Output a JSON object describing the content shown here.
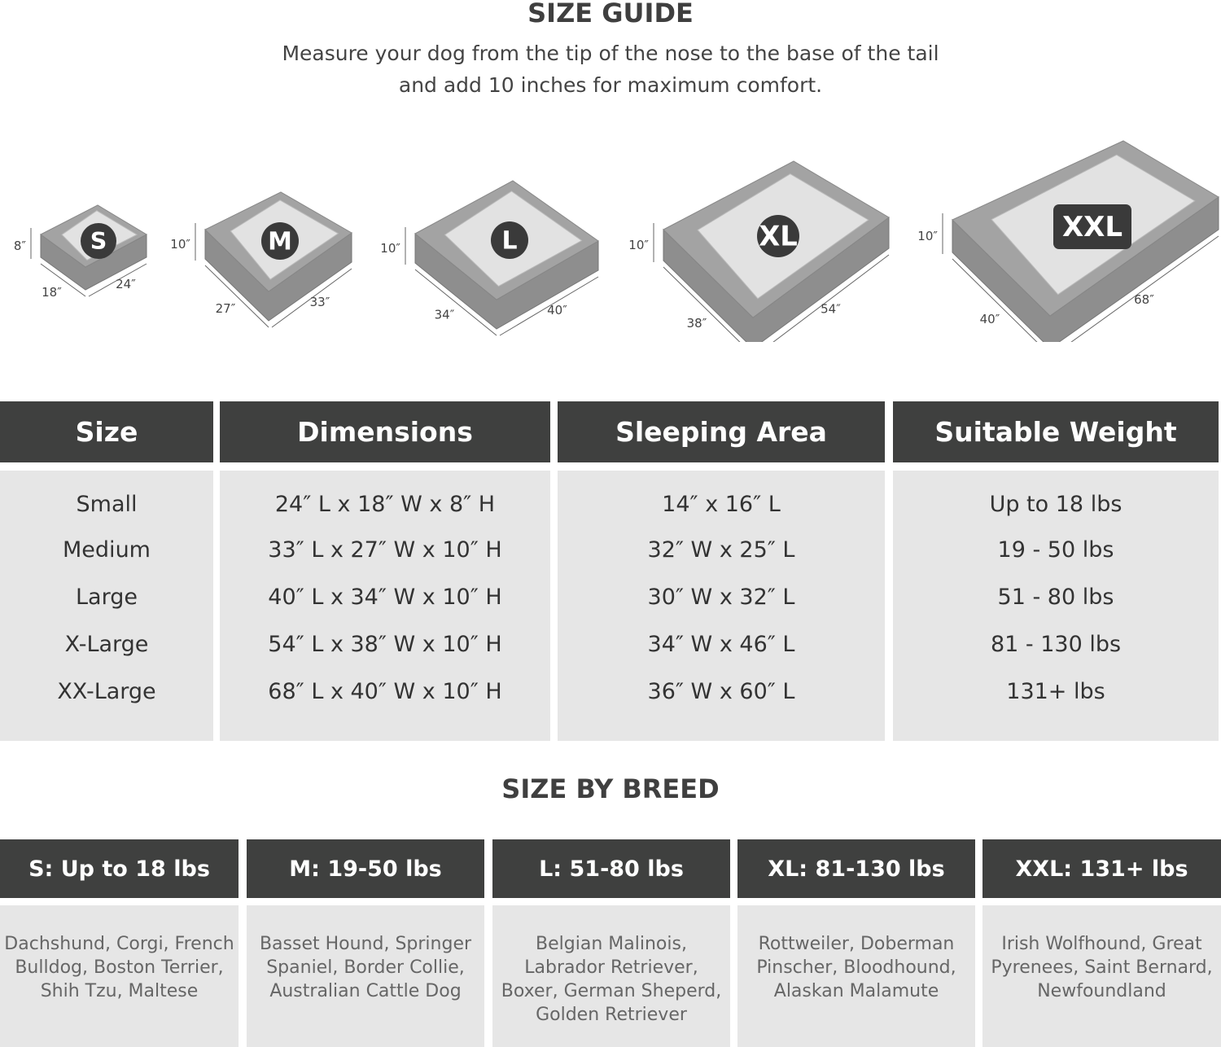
{
  "title": "SIZE GUIDE",
  "subtitle": [
    "Measure your dog from the tip of the nose to the base of the tail",
    "and add 10 inches for maximum comfort."
  ],
  "beds": [
    {
      "badge": "S",
      "height": "8″",
      "width": "18″",
      "length": "24″"
    },
    {
      "badge": "M",
      "height": "10″",
      "width": "27″",
      "length": "33″"
    },
    {
      "badge": "L",
      "height": "10″",
      "width": "34″",
      "length": "40″"
    },
    {
      "badge": "XL",
      "height": "10″",
      "width": "38″",
      "length": "54″"
    },
    {
      "badge": "XXL",
      "height": "10″",
      "width": "40″",
      "length": "68″"
    }
  ],
  "table": {
    "headers": [
      "Size",
      "Dimensions",
      "Sleeping Area",
      "Suitable Weight"
    ],
    "columns": [
      [
        "Small",
        "Medium",
        "Large",
        "X-Large",
        "XX-Large"
      ],
      [
        "24″ L x 18″ W x 8″ H",
        "33″ L x 27″ W x 10″ H",
        "40″ L x 34″ W x 10″ H",
        "54″ L x 38″ W x 10″ H",
        "68″ L x 40″ W x 10″ H"
      ],
      [
        "14″ x 16″ L",
        "32″ W x 25″ L",
        "30″ W x 32″ L",
        "34″ W x 46″ L",
        "36″ W x 60″ L"
      ],
      [
        "Up to 18 lbs",
        "19 - 50 lbs",
        "51 - 80 lbs",
        "81 - 130 lbs",
        "131+ lbs"
      ]
    ]
  },
  "breed_title": "SIZE BY BREED",
  "breeds": [
    {
      "header": "S: Up to 18 lbs",
      "lines": [
        "Dachshund, Corgi, French",
        "Bulldog, Boston Terrier,",
        "Shih Tzu, Maltese"
      ]
    },
    {
      "header": "M: 19-50 lbs",
      "lines": [
        "Basset Hound, Springer",
        "Spaniel, Border Collie,",
        "Australian Cattle Dog"
      ]
    },
    {
      "header": "L: 51-80 lbs",
      "lines": [
        "Belgian Malinois,",
        "Labrador Retriever,",
        "Boxer, German Sheperd,",
        "Golden Retriever"
      ]
    },
    {
      "header": "XL: 81-130 lbs",
      "lines": [
        "Rottweiler, Doberman",
        "Pinscher, Bloodhound,",
        "Alaskan Malamute"
      ]
    },
    {
      "header": "XXL: 131+ lbs",
      "lines": [
        "Irish Wolfhound, Great",
        "Pyrenees, Saint Bernard,",
        "Newfoundland"
      ]
    }
  ],
  "colors": {
    "header_bg": "#3f403f",
    "cell_bg": "#e6e6e6",
    "bed_frame": "#9a9a9a",
    "badge": "#3a3a3a"
  }
}
